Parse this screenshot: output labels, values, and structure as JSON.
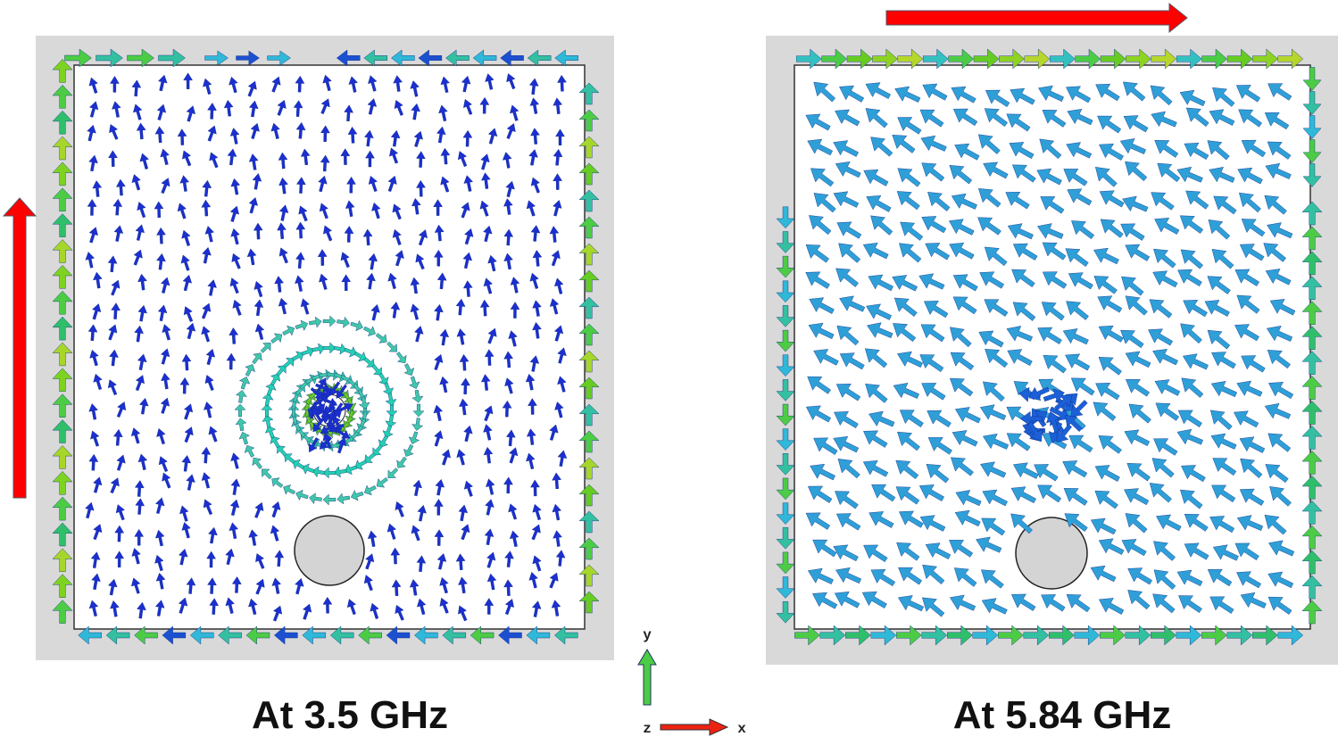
{
  "panels": [
    {
      "caption": "At 3.5 GHz"
    },
    {
      "caption": "At 5.84 GHz"
    }
  ],
  "axes": {
    "y": "y",
    "z": "z",
    "x": "x"
  }
}
